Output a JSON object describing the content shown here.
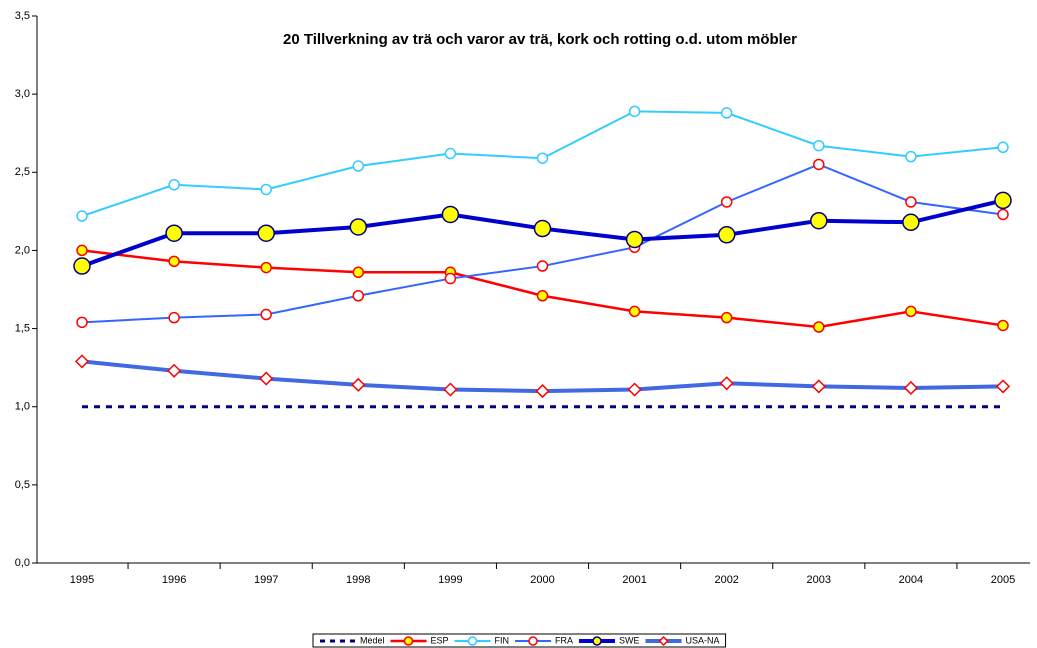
{
  "chart_data": {
    "type": "line",
    "title": "20 Tillverkning av trä och varor av trä, kork och rotting o.d. utom möbler",
    "categories": [
      "1995",
      "1996",
      "1997",
      "1998",
      "1999",
      "2000",
      "2001",
      "2002",
      "2003",
      "2004",
      "2005"
    ],
    "ylim": [
      0,
      3.5
    ],
    "yticks": [
      {
        "value": 0,
        "label": "0,0"
      },
      {
        "value": 0.5,
        "label": "0,5"
      },
      {
        "value": 1,
        "label": "1,0"
      },
      {
        "value": 1.5,
        "label": "1,5"
      },
      {
        "value": 2,
        "label": "2,0"
      },
      {
        "value": 2.5,
        "label": "2,5"
      },
      {
        "value": 3,
        "label": "3,0"
      },
      {
        "value": 3.5,
        "label": "3,5"
      }
    ],
    "grid": false,
    "legend": "bottom",
    "series": [
      {
        "name": "Medel",
        "color": "#000080",
        "line_width": 3,
        "dash": true,
        "marker": null,
        "values": [
          1,
          1,
          1,
          1,
          1,
          1,
          1,
          1,
          1,
          1,
          1
        ]
      },
      {
        "name": "ESP",
        "color": "#ff0000",
        "line_width": 2.5,
        "marker": "circle",
        "marker_size": 5,
        "marker_fill": "#ffff00",
        "marker_stroke": "#ff0000",
        "values": [
          2.0,
          1.93,
          1.89,
          1.86,
          1.86,
          1.71,
          1.61,
          1.57,
          1.51,
          1.61,
          1.52
        ]
      },
      {
        "name": "FIN",
        "color": "#33ccff",
        "line_width": 2,
        "marker": "circle",
        "marker_size": 5,
        "marker_fill": "#ffffff",
        "marker_stroke": "#33ccff",
        "values": [
          2.22,
          2.42,
          2.39,
          2.54,
          2.62,
          2.59,
          2.89,
          2.88,
          2.67,
          2.6,
          2.66
        ]
      },
      {
        "name": "FRA",
        "color": "#3366ff",
        "line_width": 2,
        "marker": "circle",
        "marker_size": 5,
        "marker_fill": "#ffffff",
        "marker_stroke": "#ff0000",
        "values": [
          1.54,
          1.57,
          1.59,
          1.71,
          1.82,
          1.9,
          2.02,
          2.31,
          2.55,
          2.31,
          2.23
        ]
      },
      {
        "name": "SWE",
        "color": "#0000cc",
        "line_width": 4,
        "marker": "circle",
        "marker_size": 8,
        "marker_fill": "#ffff00",
        "marker_stroke": "#000080",
        "values": [
          1.9,
          2.11,
          2.11,
          2.15,
          2.23,
          2.14,
          2.07,
          2.1,
          2.19,
          2.18,
          2.32
        ]
      },
      {
        "name": "USA-NA",
        "color": "#4169e1",
        "line_width": 4,
        "marker": "diamond",
        "marker_size": 6,
        "marker_fill": "#ffffff",
        "marker_stroke": "#ff0000",
        "values": [
          1.29,
          1.23,
          1.18,
          1.14,
          1.11,
          1.1,
          1.11,
          1.15,
          1.13,
          1.12,
          1.13
        ]
      }
    ]
  }
}
